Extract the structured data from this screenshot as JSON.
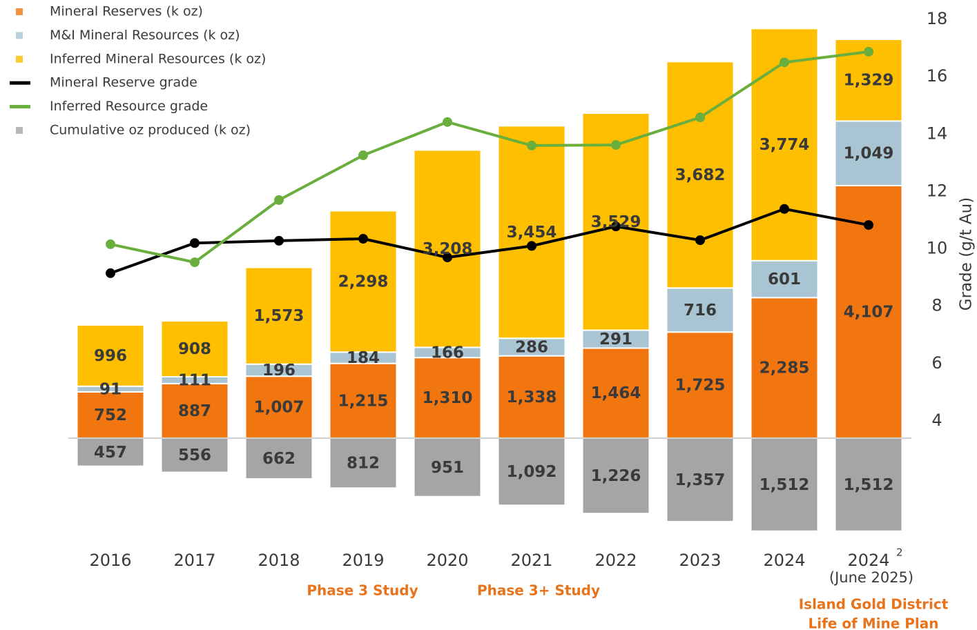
{
  "chart_data": {
    "type": "bar",
    "categories": [
      "2016",
      "2017",
      "2018",
      "2019",
      "2020",
      "2021",
      "2022",
      "2023",
      "2024",
      "2024"
    ],
    "last_category_superscript": "2",
    "last_category_subtitle": "(June 2025)",
    "y2_label": "Grade (g/t Au)",
    "ylim": [
      -1650,
      6900
    ],
    "y2lim": [
      4,
      18
    ],
    "y2ticks": [
      4,
      6,
      8,
      10,
      12,
      14,
      16,
      18
    ],
    "series": [
      {
        "name": "Mineral Reserves (k oz)",
        "type": "bar",
        "color": "#f2760f",
        "values": [
          752,
          887,
          1007,
          1215,
          1310,
          1338,
          1464,
          1725,
          2285,
          4107
        ],
        "value_labels": [
          "752",
          "887",
          "1,007",
          "1,215",
          "1,310",
          "1,338",
          "1,464",
          "1,725",
          "2,285",
          "4,107"
        ]
      },
      {
        "name": "M&I Mineral Resources (k oz)",
        "type": "bar",
        "color": "#a9c5d4",
        "values": [
          91,
          111,
          196,
          184,
          166,
          286,
          291,
          716,
          601,
          1049
        ],
        "value_labels": [
          "91",
          "111",
          "196",
          "184",
          "166",
          "286",
          "291",
          "716",
          "601",
          "1,049"
        ]
      },
      {
        "name": "Inferred Mineral Resources (k oz)",
        "type": "bar",
        "color": "#fdbf00",
        "values": [
          996,
          908,
          1573,
          2298,
          3208,
          3454,
          3529,
          3682,
          3774,
          1329
        ],
        "value_labels": [
          "996",
          "908",
          "1,573",
          "2,298",
          "3,208",
          "3,454",
          "3,529",
          "3,682",
          "3,774",
          "1,329"
        ]
      },
      {
        "name": "Mineral Reserve grade",
        "type": "line",
        "axis": "y2",
        "color": "#000000",
        "values": [
          9.15,
          10.2,
          10.28,
          10.35,
          9.7,
          10.1,
          10.78,
          10.3,
          11.39,
          10.83
        ]
      },
      {
        "name": "Inferred Resource grade",
        "type": "line",
        "axis": "y2",
        "color": "#6aaf3d",
        "values": [
          10.16,
          9.53,
          11.7,
          13.26,
          14.42,
          13.6,
          13.62,
          14.58,
          16.5,
          16.87
        ]
      },
      {
        "name": "Cumulative oz produced (k oz)",
        "type": "bar",
        "direction": "down",
        "color": "#a5a5a5",
        "values": [
          457,
          556,
          662,
          812,
          951,
          1092,
          1226,
          1357,
          1512,
          1512
        ],
        "value_labels": [
          "457",
          "556",
          "662",
          "812",
          "951",
          "1,092",
          "1,226",
          "1,357",
          "1,512",
          "1,512"
        ]
      }
    ],
    "annotations": [
      "Phase 3 Study",
      "Phase 3+ Study",
      "Island Gold District",
      "Life of Mine Plan"
    ]
  }
}
